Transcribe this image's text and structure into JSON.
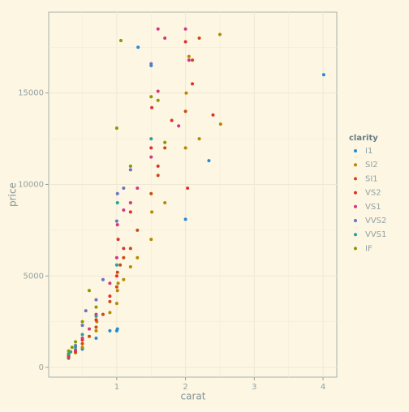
{
  "chart_data": {
    "type": "scatter",
    "x_label": "carat",
    "y_label": "price",
    "legend_title": "clarity",
    "legend": "right",
    "grid": true,
    "xlim": [
      0.01,
      4.2
    ],
    "ylim": [
      -530,
      19420
    ],
    "xticks": [
      1,
      2,
      3,
      4
    ],
    "yticks": [
      0,
      5000,
      10000,
      15000
    ],
    "series": [
      {
        "name": "I1",
        "color": "#268bd2",
        "x": [
          0.3,
          0.5,
          0.7,
          0.9,
          1.0,
          1.01,
          1.31,
          1.5,
          2.0,
          2.34,
          4.01
        ],
        "y": [
          500,
          1000,
          1600,
          2000,
          2000,
          2100,
          17500,
          16500,
          8100,
          11300,
          16000
        ]
      },
      {
        "name": "SI2",
        "color": "#b58900",
        "x": [
          0.3,
          0.4,
          0.5,
          0.7,
          0.71,
          0.9,
          1.0,
          1.01,
          1.02,
          1.1,
          1.2,
          1.3,
          1.5,
          1.51,
          1.7,
          2.0,
          2.01,
          2.05,
          2.2,
          2.5,
          2.51
        ],
        "y": [
          600,
          800,
          1100,
          2000,
          2500,
          3000,
          3500,
          4200,
          4600,
          4800,
          5500,
          6000,
          7000,
          8500,
          9000,
          12000,
          15000,
          17000,
          12500,
          18200,
          13300
        ]
      },
      {
        "name": "SI1",
        "color": "#cb4b16",
        "x": [
          0.3,
          0.4,
          0.5,
          0.6,
          0.7,
          0.8,
          0.9,
          1.0,
          1.01,
          1.05,
          1.1,
          1.2,
          1.3,
          1.5,
          1.6,
          1.7,
          2.0,
          2.1,
          2.2
        ],
        "y": [
          550,
          850,
          1300,
          1700,
          2200,
          2900,
          3600,
          4400,
          5200,
          5600,
          6000,
          6500,
          7500,
          9500,
          10500,
          12000,
          14000,
          16800,
          18000
        ]
      },
      {
        "name": "VS2",
        "color": "#dc322f",
        "x": [
          0.3,
          0.4,
          0.5,
          0.7,
          0.9,
          1.0,
          1.02,
          1.1,
          1.2,
          1.5,
          1.51,
          1.6,
          1.8,
          2.0,
          2.03,
          2.1,
          2.4
        ],
        "y": [
          650,
          900,
          1500,
          2600,
          3900,
          5000,
          7000,
          6500,
          8500,
          12000,
          14200,
          11000,
          13500,
          17800,
          9800,
          15500,
          13800
        ]
      },
      {
        "name": "VS1",
        "color": "#d33682",
        "x": [
          0.3,
          0.4,
          0.5,
          0.6,
          0.7,
          0.9,
          1.0,
          1.01,
          1.1,
          1.2,
          1.3,
          1.5,
          1.6,
          1.6,
          1.7,
          1.9,
          2.0,
          2.05
        ],
        "y": [
          700,
          950,
          1600,
          2100,
          2900,
          4600,
          6000,
          7800,
          8600,
          9000,
          9800,
          11500,
          15100,
          18500,
          18000,
          13200,
          18500,
          16800
        ]
      },
      {
        "name": "VVS2",
        "color": "#6c71c4",
        "x": [
          0.3,
          0.4,
          0.5,
          0.55,
          0.7,
          0.8,
          1.0,
          1.01,
          1.1,
          1.2,
          1.5
        ],
        "y": [
          750,
          1200,
          2300,
          3100,
          3700,
          4800,
          8000,
          9500,
          9800,
          10800,
          16600
        ]
      },
      {
        "name": "VVS1",
        "color": "#2aa198",
        "x": [
          0.3,
          0.33,
          0.4,
          0.5,
          0.7,
          1.0,
          1.01,
          1.5
        ],
        "y": [
          750,
          850,
          1100,
          1800,
          2800,
          5600,
          9000,
          12500
        ]
      },
      {
        "name": "IF",
        "color": "#859900",
        "x": [
          0.3,
          0.35,
          0.4,
          0.5,
          0.6,
          0.7,
          1.0,
          1.06,
          1.2,
          1.5,
          1.6,
          1.7
        ],
        "y": [
          900,
          1100,
          1400,
          2500,
          4200,
          3300,
          13080,
          17870,
          11000,
          14800,
          14600,
          12300
        ]
      }
    ]
  }
}
